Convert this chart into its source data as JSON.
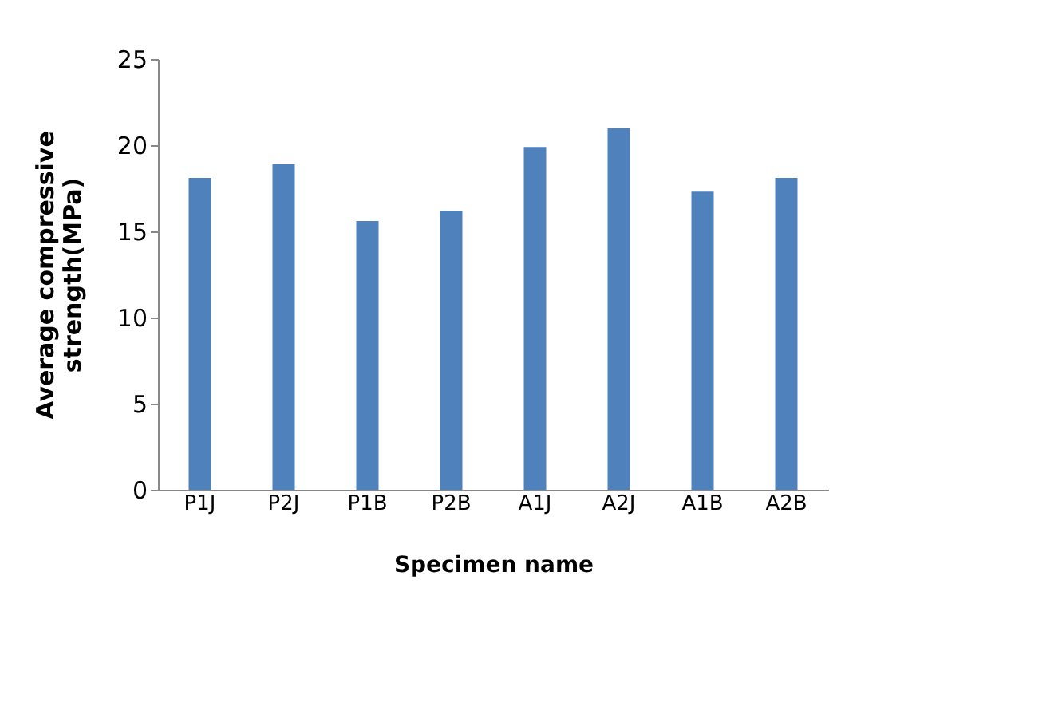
{
  "chart_data": {
    "type": "bar",
    "xlabel": "Specimen name",
    "ylabel": "Average compressive strength(MPa)",
    "categories": [
      "P1J",
      "P2J",
      "P1B",
      "P2B",
      "A1J",
      "A2J",
      "A1B",
      "A2B"
    ],
    "values": [
      18.1,
      18.9,
      15.6,
      16.2,
      19.9,
      21.0,
      17.3,
      18.1
    ],
    "color": "#4f81bd",
    "ylim": [
      0,
      25
    ],
    "yticks": [
      0,
      5,
      10,
      15,
      20,
      25
    ],
    "grid": false
  }
}
